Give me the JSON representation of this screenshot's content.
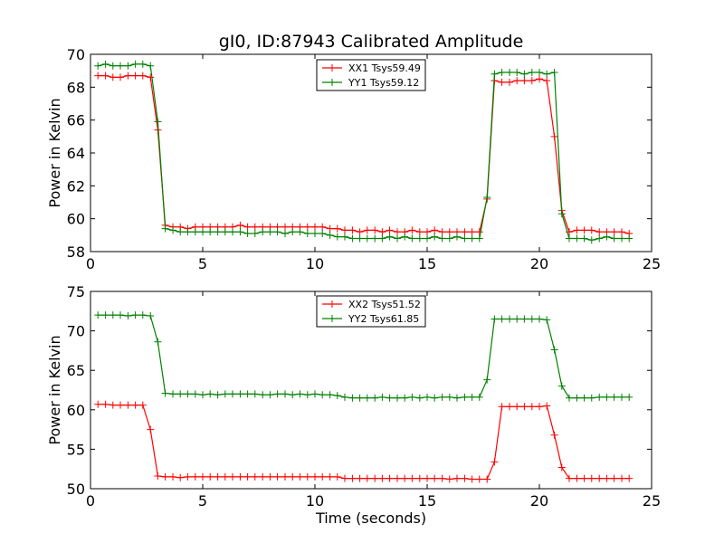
{
  "figure": {
    "title": "gI0, ID:87943 Calibrated Amplitude",
    "xlabel": "Time (seconds)"
  },
  "chart_data": [
    {
      "type": "line",
      "title": "gI0, ID:87943 Calibrated Amplitude",
      "xlabel": "",
      "ylabel": "Power in Kelvin",
      "xlim": [
        0,
        25
      ],
      "ylim": [
        58,
        70
      ],
      "xticks": [
        0,
        5,
        10,
        15,
        20,
        25
      ],
      "yticks": [
        58,
        60,
        62,
        64,
        66,
        68,
        70
      ],
      "grid": false,
      "legend_position": "top-center",
      "x": [
        0.33,
        0.67,
        1.0,
        1.33,
        1.67,
        2.0,
        2.33,
        2.67,
        3.0,
        3.33,
        3.67,
        4.0,
        4.33,
        4.67,
        5.0,
        5.33,
        5.67,
        6.0,
        6.33,
        6.67,
        7.0,
        7.33,
        7.67,
        8.0,
        8.33,
        8.67,
        9.0,
        9.33,
        9.67,
        10.0,
        10.33,
        10.67,
        11.0,
        11.33,
        11.67,
        12.0,
        12.33,
        12.67,
        13.0,
        13.33,
        13.67,
        14.0,
        14.33,
        14.67,
        15.0,
        15.33,
        15.67,
        16.0,
        16.33,
        16.67,
        17.0,
        17.33,
        17.67,
        18.0,
        18.33,
        18.67,
        19.0,
        19.33,
        19.67,
        20.0,
        20.33,
        20.67,
        21.0,
        21.33,
        21.67,
        22.0,
        22.33,
        22.67,
        23.0,
        23.33,
        23.67,
        24.0
      ],
      "series": [
        {
          "name": "XX1 Tsys59.49",
          "color": "#ff0000",
          "values": [
            68.7,
            68.7,
            68.6,
            68.6,
            68.7,
            68.7,
            68.7,
            68.6,
            65.4,
            59.6,
            59.5,
            59.5,
            59.4,
            59.5,
            59.5,
            59.5,
            59.5,
            59.5,
            59.5,
            59.6,
            59.5,
            59.5,
            59.5,
            59.5,
            59.5,
            59.5,
            59.5,
            59.5,
            59.5,
            59.5,
            59.5,
            59.4,
            59.4,
            59.3,
            59.3,
            59.2,
            59.3,
            59.3,
            59.2,
            59.3,
            59.2,
            59.2,
            59.3,
            59.2,
            59.2,
            59.3,
            59.2,
            59.2,
            59.2,
            59.2,
            59.2,
            59.2,
            61.2,
            68.4,
            68.3,
            68.3,
            68.4,
            68.4,
            68.4,
            68.5,
            68.4,
            65.0,
            60.5,
            59.2,
            59.3,
            59.3,
            59.3,
            59.2,
            59.2,
            59.2,
            59.2,
            59.1
          ]
        },
        {
          "name": "YY1 Tsys59.12",
          "color": "#008000",
          "values": [
            69.3,
            69.4,
            69.3,
            69.3,
            69.3,
            69.4,
            69.4,
            69.3,
            65.9,
            59.4,
            59.3,
            59.2,
            59.2,
            59.2,
            59.2,
            59.2,
            59.2,
            59.2,
            59.2,
            59.2,
            59.1,
            59.1,
            59.2,
            59.2,
            59.2,
            59.1,
            59.2,
            59.2,
            59.1,
            59.1,
            59.1,
            59.0,
            58.9,
            58.9,
            58.8,
            58.8,
            58.8,
            58.8,
            58.8,
            58.9,
            58.8,
            58.9,
            58.8,
            58.8,
            58.8,
            58.9,
            58.8,
            58.8,
            58.9,
            58.8,
            58.8,
            58.8,
            61.3,
            68.8,
            68.9,
            68.9,
            68.9,
            68.8,
            68.9,
            68.9,
            68.8,
            68.9,
            60.3,
            58.8,
            58.8,
            58.8,
            58.7,
            58.8,
            58.9,
            58.8,
            58.8,
            58.8
          ]
        }
      ]
    },
    {
      "type": "line",
      "title": "",
      "xlabel": "Time (seconds)",
      "ylabel": "Power in Kelvin",
      "xlim": [
        0,
        25
      ],
      "ylim": [
        50,
        75
      ],
      "xticks": [
        0,
        5,
        10,
        15,
        20,
        25
      ],
      "yticks": [
        50,
        55,
        60,
        65,
        70,
        75
      ],
      "grid": false,
      "legend_position": "top-center",
      "x": [
        0.33,
        0.67,
        1.0,
        1.33,
        1.67,
        2.0,
        2.33,
        2.67,
        3.0,
        3.33,
        3.67,
        4.0,
        4.33,
        4.67,
        5.0,
        5.33,
        5.67,
        6.0,
        6.33,
        6.67,
        7.0,
        7.33,
        7.67,
        8.0,
        8.33,
        8.67,
        9.0,
        9.33,
        9.67,
        10.0,
        10.33,
        10.67,
        11.0,
        11.33,
        11.67,
        12.0,
        12.33,
        12.67,
        13.0,
        13.33,
        13.67,
        14.0,
        14.33,
        14.67,
        15.0,
        15.33,
        15.67,
        16.0,
        16.33,
        16.67,
        17.0,
        17.33,
        17.67,
        18.0,
        18.33,
        18.67,
        19.0,
        19.33,
        19.67,
        20.0,
        20.33,
        20.67,
        21.0,
        21.33,
        21.67,
        22.0,
        22.33,
        22.67,
        23.0,
        23.33,
        23.67,
        24.0
      ],
      "series": [
        {
          "name": "XX2 Tsys51.52",
          "color": "#ff0000",
          "values": [
            60.7,
            60.7,
            60.6,
            60.6,
            60.6,
            60.6,
            60.6,
            57.5,
            51.6,
            51.5,
            51.5,
            51.4,
            51.5,
            51.5,
            51.5,
            51.5,
            51.5,
            51.5,
            51.5,
            51.5,
            51.5,
            51.5,
            51.5,
            51.5,
            51.5,
            51.5,
            51.5,
            51.5,
            51.5,
            51.5,
            51.5,
            51.5,
            51.5,
            51.3,
            51.3,
            51.3,
            51.3,
            51.3,
            51.3,
            51.3,
            51.3,
            51.3,
            51.3,
            51.3,
            51.3,
            51.3,
            51.3,
            51.2,
            51.3,
            51.3,
            51.2,
            51.2,
            51.2,
            53.4,
            60.4,
            60.4,
            60.4,
            60.4,
            60.4,
            60.4,
            60.5,
            56.8,
            52.7,
            51.3,
            51.3,
            51.3,
            51.3,
            51.3,
            51.3,
            51.3,
            51.3,
            51.3
          ]
        },
        {
          "name": "YY2 Tsys61.85",
          "color": "#008000",
          "values": [
            72.0,
            72.0,
            72.0,
            72.0,
            71.9,
            72.0,
            72.0,
            71.9,
            68.6,
            62.1,
            62.0,
            62.0,
            62.0,
            62.0,
            61.9,
            62.0,
            61.9,
            62.0,
            62.0,
            62.0,
            62.0,
            62.0,
            61.9,
            61.9,
            62.0,
            62.0,
            61.9,
            62.0,
            61.9,
            62.0,
            61.9,
            61.9,
            61.8,
            61.6,
            61.5,
            61.5,
            61.5,
            61.5,
            61.6,
            61.5,
            61.5,
            61.5,
            61.6,
            61.5,
            61.6,
            61.5,
            61.6,
            61.6,
            61.5,
            61.6,
            61.6,
            61.6,
            63.8,
            71.5,
            71.5,
            71.5,
            71.5,
            71.5,
            71.5,
            71.5,
            71.4,
            67.6,
            63.0,
            61.5,
            61.5,
            61.5,
            61.5,
            61.6,
            61.6,
            61.6,
            61.6,
            61.6
          ]
        }
      ]
    }
  ]
}
